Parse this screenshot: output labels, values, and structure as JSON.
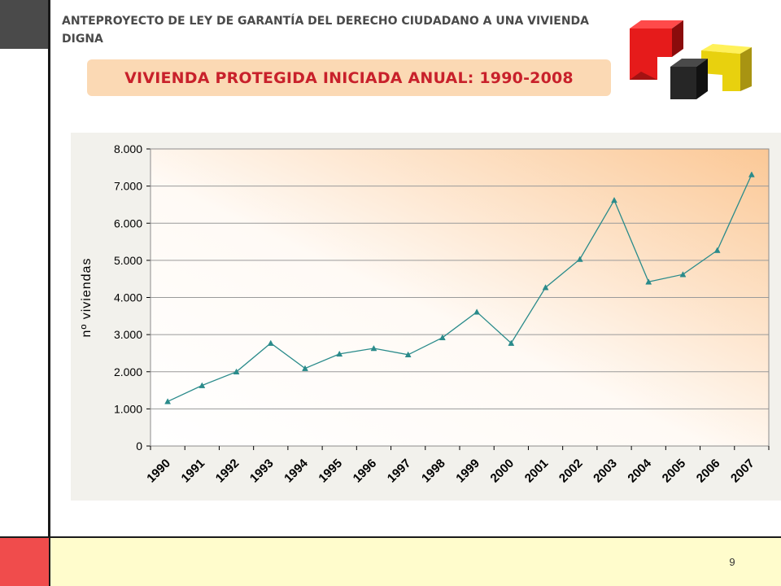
{
  "slide": {
    "header": "ANTEPROYECTO  DE LEY DE GARANTÍA DEL DERECHO CIUDADANO A UNA VIVIENDA DIGNA",
    "title": "VIVIENDA PROTEGIDA INICIADA ANUAL: 1990-2008",
    "page_number": "9"
  },
  "colors": {
    "title_text": "#c8212b",
    "title_box": "#fbd9b4",
    "line": "#2a8b8b",
    "plot_gradient_end": "#fbc896",
    "footer_red": "#f04c4c",
    "footer_yellow": "#fffccc"
  },
  "logo": {
    "icon": "stacked-cubes-logo"
  },
  "chart_data": {
    "type": "line",
    "title": "",
    "xlabel": "",
    "ylabel": "nº viviendas",
    "categories": [
      "1990",
      "1991",
      "1992",
      "1993",
      "1994",
      "1995",
      "1996",
      "1997",
      "1998",
      "1999",
      "2000",
      "2001",
      "2002",
      "2003",
      "2004",
      "2005",
      "2006",
      "2007"
    ],
    "series": [
      {
        "values": [
          1200,
          1630,
          2000,
          2770,
          2090,
          2480,
          2630,
          2460,
          2920,
          3610,
          2770,
          4270,
          5030,
          6620,
          4420,
          4620,
          5270,
          7310
        ]
      }
    ],
    "ylim": [
      0,
      8000
    ],
    "yticks": [
      0,
      1000,
      2000,
      3000,
      4000,
      5000,
      6000,
      7000,
      8000
    ],
    "ytick_labels": [
      "0",
      "1.000",
      "2.000",
      "3.000",
      "4.000",
      "5.000",
      "6.000",
      "7.000",
      "8.000"
    ],
    "grid": true,
    "legend": "none",
    "marker": "triangle"
  }
}
